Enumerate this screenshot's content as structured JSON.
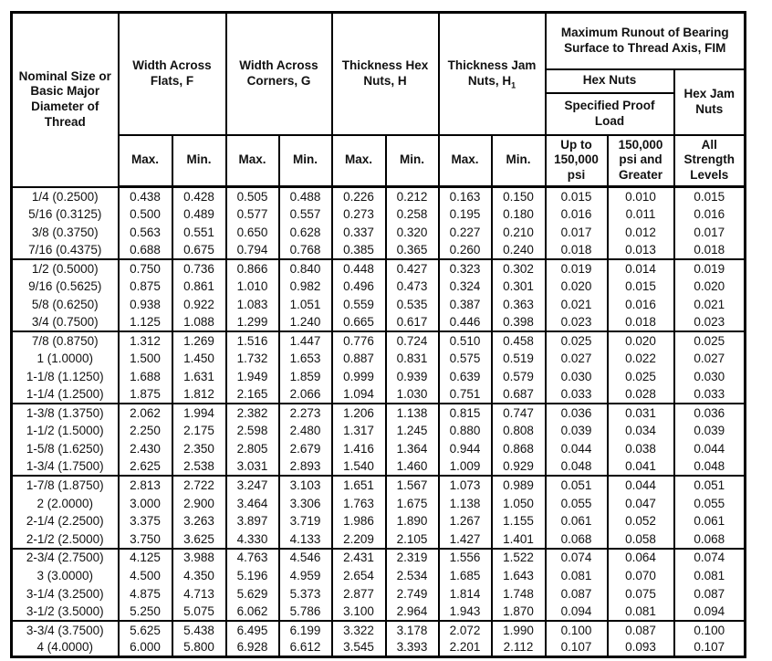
{
  "table": {
    "header": {
      "nominal": "Nominal Size or Basic Major Diameter of Thread",
      "width_flats": "Width Across Flats, F",
      "width_corners": "Width Across Corners, G",
      "thickness_hex": "Thickness Hex Nuts, H",
      "thickness_jam": "Thickness Jam Nuts, H",
      "thickness_jam_sub": "1",
      "runout": "Maximum Runout of Bearing Surface to Thread Axis, FIM",
      "hex_nuts": "Hex Nuts",
      "specified_proof_load": "Specified Proof Load",
      "hex_jam_nuts": "Hex Jam Nuts",
      "max": "Max.",
      "min": "Min.",
      "up_to": "Up to 150,000 psi",
      "psi_greater": "150,000 psi and Greater",
      "all_strength": "All Strength Levels"
    },
    "groups": [
      [
        [
          "1/4 (0.2500)",
          "0.438",
          "0.428",
          "0.505",
          "0.488",
          "0.226",
          "0.212",
          "0.163",
          "0.150",
          "0.015",
          "0.010",
          "0.015"
        ],
        [
          "5/16 (0.3125)",
          "0.500",
          "0.489",
          "0.577",
          "0.557",
          "0.273",
          "0.258",
          "0.195",
          "0.180",
          "0.016",
          "0.011",
          "0.016"
        ],
        [
          "3/8 (0.3750)",
          "0.563",
          "0.551",
          "0.650",
          "0.628",
          "0.337",
          "0.320",
          "0.227",
          "0.210",
          "0.017",
          "0.012",
          "0.017"
        ],
        [
          "7/16 (0.4375)",
          "0.688",
          "0.675",
          "0.794",
          "0.768",
          "0.385",
          "0.365",
          "0.260",
          "0.240",
          "0.018",
          "0.013",
          "0.018"
        ]
      ],
      [
        [
          "1/2 (0.5000)",
          "0.750",
          "0.736",
          "0.866",
          "0.840",
          "0.448",
          "0.427",
          "0.323",
          "0.302",
          "0.019",
          "0.014",
          "0.019"
        ],
        [
          "9/16 (0.5625)",
          "0.875",
          "0.861",
          "1.010",
          "0.982",
          "0.496",
          "0.473",
          "0.324",
          "0.301",
          "0.020",
          "0.015",
          "0.020"
        ],
        [
          "5/8 (0.6250)",
          "0.938",
          "0.922",
          "1.083",
          "1.051",
          "0.559",
          "0.535",
          "0.387",
          "0.363",
          "0.021",
          "0.016",
          "0.021"
        ],
        [
          "3/4 (0.7500)",
          "1.125",
          "1.088",
          "1.299",
          "1.240",
          "0.665",
          "0.617",
          "0.446",
          "0.398",
          "0.023",
          "0.018",
          "0.023"
        ]
      ],
      [
        [
          "7/8 (0.8750)",
          "1.312",
          "1.269",
          "1.516",
          "1.447",
          "0.776",
          "0.724",
          "0.510",
          "0.458",
          "0.025",
          "0.020",
          "0.025"
        ],
        [
          "1 (1.0000)",
          "1.500",
          "1.450",
          "1.732",
          "1.653",
          "0.887",
          "0.831",
          "0.575",
          "0.519",
          "0.027",
          "0.022",
          "0.027"
        ],
        [
          "1-1/8 (1.1250)",
          "1.688",
          "1.631",
          "1.949",
          "1.859",
          "0.999",
          "0.939",
          "0.639",
          "0.579",
          "0.030",
          "0.025",
          "0.030"
        ],
        [
          "1-1/4 (1.2500)",
          "1.875",
          "1.812",
          "2.165",
          "2.066",
          "1.094",
          "1.030",
          "0.751",
          "0.687",
          "0.033",
          "0.028",
          "0.033"
        ]
      ],
      [
        [
          "1-3/8 (1.3750)",
          "2.062",
          "1.994",
          "2.382",
          "2.273",
          "1.206",
          "1.138",
          "0.815",
          "0.747",
          "0.036",
          "0.031",
          "0.036"
        ],
        [
          "1-1/2 (1.5000)",
          "2.250",
          "2.175",
          "2.598",
          "2.480",
          "1.317",
          "1.245",
          "0.880",
          "0.808",
          "0.039",
          "0.034",
          "0.039"
        ],
        [
          "1-5/8 (1.6250)",
          "2.430",
          "2.350",
          "2.805",
          "2.679",
          "1.416",
          "1.364",
          "0.944",
          "0.868",
          "0.044",
          "0.038",
          "0.044"
        ],
        [
          "1-3/4 (1.7500)",
          "2.625",
          "2.538",
          "3.031",
          "2.893",
          "1.540",
          "1.460",
          "1.009",
          "0.929",
          "0.048",
          "0.041",
          "0.048"
        ]
      ],
      [
        [
          "1-7/8 (1.8750)",
          "2.813",
          "2.722",
          "3.247",
          "3.103",
          "1.651",
          "1.567",
          "1.073",
          "0.989",
          "0.051",
          "0.044",
          "0.051"
        ],
        [
          "2 (2.0000)",
          "3.000",
          "2.900",
          "3.464",
          "3.306",
          "1.763",
          "1.675",
          "1.138",
          "1.050",
          "0.055",
          "0.047",
          "0.055"
        ],
        [
          "2-1/4 (2.2500)",
          "3.375",
          "3.263",
          "3.897",
          "3.719",
          "1.986",
          "1.890",
          "1.267",
          "1.155",
          "0.061",
          "0.052",
          "0.061"
        ],
        [
          "2-1/2 (2.5000)",
          "3.750",
          "3.625",
          "4.330",
          "4.133",
          "2.209",
          "2.105",
          "1.427",
          "1.401",
          "0.068",
          "0.058",
          "0.068"
        ]
      ],
      [
        [
          "2-3/4 (2.7500)",
          "4.125",
          "3.988",
          "4.763",
          "4.546",
          "2.431",
          "2.319",
          "1.556",
          "1.522",
          "0.074",
          "0.064",
          "0.074"
        ],
        [
          "3 (3.0000)",
          "4.500",
          "4.350",
          "5.196",
          "4.959",
          "2.654",
          "2.534",
          "1.685",
          "1.643",
          "0.081",
          "0.070",
          "0.081"
        ],
        [
          "3-1/4 (3.2500)",
          "4.875",
          "4.713",
          "5.629",
          "5.373",
          "2.877",
          "2.749",
          "1.814",
          "1.748",
          "0.087",
          "0.075",
          "0.087"
        ],
        [
          "3-1/2 (3.5000)",
          "5.250",
          "5.075",
          "6.062",
          "5.786",
          "3.100",
          "2.964",
          "1.943",
          "1.870",
          "0.094",
          "0.081",
          "0.094"
        ]
      ],
      [
        [
          "3-3/4 (3.7500)",
          "5.625",
          "5.438",
          "6.495",
          "6.199",
          "3.322",
          "3.178",
          "2.072",
          "1.990",
          "0.100",
          "0.087",
          "0.100"
        ],
        [
          "4 (4.0000)",
          "6.000",
          "5.800",
          "6.928",
          "6.612",
          "3.545",
          "3.393",
          "2.201",
          "2.112",
          "0.107",
          "0.093",
          "0.107"
        ]
      ]
    ]
  }
}
